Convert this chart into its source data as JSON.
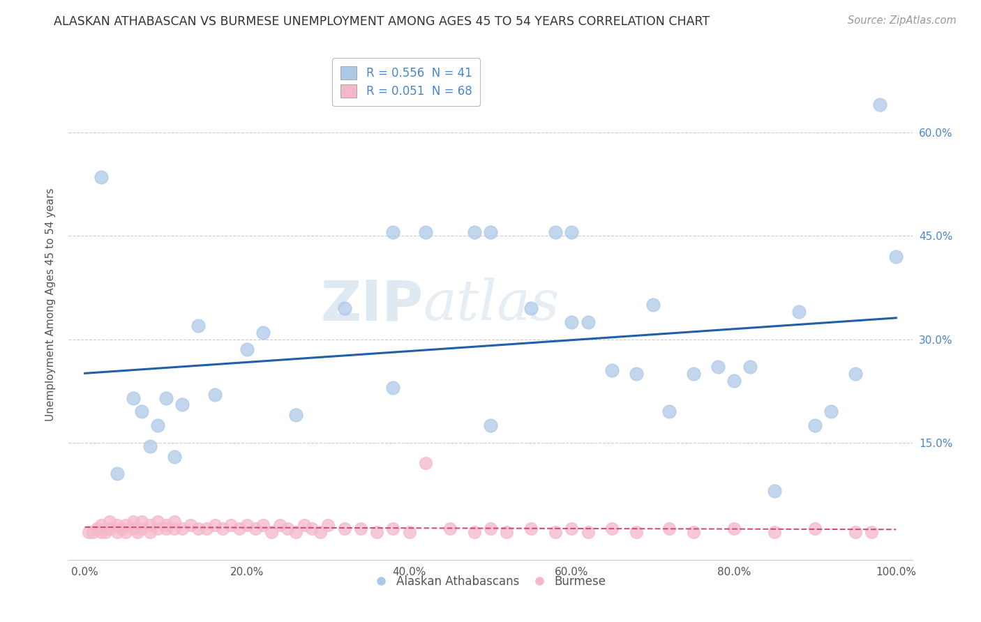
{
  "title": "ALASKAN ATHABASCAN VS BURMESE UNEMPLOYMENT AMONG AGES 45 TO 54 YEARS CORRELATION CHART",
  "source": "Source: ZipAtlas.com",
  "ylabel": "Unemployment Among Ages 45 to 54 years",
  "legend_label1": "R = 0.556  N = 41",
  "legend_label2": "R = 0.051  N = 68",
  "legend_footer1": "Alaskan Athabascans",
  "legend_footer2": "Burmese",
  "xlim": [
    -0.02,
    1.02
  ],
  "ylim": [
    -0.02,
    0.72
  ],
  "xticks": [
    0,
    0.2,
    0.4,
    0.6,
    0.8,
    1.0
  ],
  "xticklabels": [
    "0.0%",
    "20.0%",
    "40.0%",
    "60.0%",
    "80.0%",
    "100.0%"
  ],
  "yticks": [
    0.15,
    0.3,
    0.45,
    0.6
  ],
  "yticklabels": [
    "15.0%",
    "30.0%",
    "45.0%",
    "60.0%"
  ],
  "blue_color": "#aec9e8",
  "pink_color": "#f5b8cb",
  "line_blue": "#2060a8",
  "line_pink": "#d05070",
  "athabascan_x": [
    0.02,
    0.04,
    0.06,
    0.07,
    0.08,
    0.09,
    0.1,
    0.11,
    0.12,
    0.14,
    0.16,
    0.2,
    0.22,
    0.26,
    0.32,
    0.38,
    0.42,
    0.48,
    0.5,
    0.55,
    0.58,
    0.6,
    0.62,
    0.65,
    0.68,
    0.7,
    0.72,
    0.75,
    0.78,
    0.8,
    0.82,
    0.85,
    0.88,
    0.9,
    0.92,
    0.95,
    0.98,
    1.0,
    0.38,
    0.5,
    0.6
  ],
  "athabascan_y": [
    0.535,
    0.105,
    0.215,
    0.195,
    0.145,
    0.175,
    0.215,
    0.13,
    0.205,
    0.32,
    0.22,
    0.285,
    0.31,
    0.19,
    0.345,
    0.23,
    0.455,
    0.455,
    0.175,
    0.345,
    0.455,
    0.325,
    0.325,
    0.255,
    0.25,
    0.35,
    0.195,
    0.25,
    0.26,
    0.24,
    0.26,
    0.08,
    0.34,
    0.175,
    0.195,
    0.25,
    0.64,
    0.42,
    0.455,
    0.455,
    0.455
  ],
  "burmese_x": [
    0.005,
    0.01,
    0.015,
    0.02,
    0.02,
    0.025,
    0.03,
    0.03,
    0.04,
    0.04,
    0.045,
    0.05,
    0.05,
    0.06,
    0.06,
    0.065,
    0.07,
    0.07,
    0.08,
    0.08,
    0.09,
    0.09,
    0.1,
    0.1,
    0.11,
    0.11,
    0.12,
    0.13,
    0.14,
    0.15,
    0.16,
    0.17,
    0.18,
    0.19,
    0.2,
    0.21,
    0.22,
    0.23,
    0.24,
    0.25,
    0.26,
    0.27,
    0.28,
    0.29,
    0.3,
    0.32,
    0.34,
    0.36,
    0.38,
    0.4,
    0.42,
    0.45,
    0.48,
    0.5,
    0.52,
    0.55,
    0.58,
    0.6,
    0.62,
    0.65,
    0.68,
    0.72,
    0.75,
    0.8,
    0.85,
    0.9,
    0.95,
    0.97
  ],
  "burmese_y": [
    0.02,
    0.02,
    0.025,
    0.02,
    0.03,
    0.02,
    0.025,
    0.035,
    0.02,
    0.03,
    0.025,
    0.02,
    0.03,
    0.025,
    0.035,
    0.02,
    0.025,
    0.035,
    0.02,
    0.03,
    0.025,
    0.035,
    0.025,
    0.03,
    0.025,
    0.035,
    0.025,
    0.03,
    0.025,
    0.025,
    0.03,
    0.025,
    0.03,
    0.025,
    0.03,
    0.025,
    0.03,
    0.02,
    0.03,
    0.025,
    0.02,
    0.03,
    0.025,
    0.02,
    0.03,
    0.025,
    0.025,
    0.02,
    0.025,
    0.02,
    0.12,
    0.025,
    0.02,
    0.025,
    0.02,
    0.025,
    0.02,
    0.025,
    0.02,
    0.025,
    0.02,
    0.025,
    0.02,
    0.025,
    0.02,
    0.025,
    0.02,
    0.02
  ],
  "bg_color": "#ffffff",
  "grid_color": "#cccccc",
  "title_fontsize": 12.5,
  "axis_label_fontsize": 11,
  "tick_fontsize": 11,
  "legend_fontsize": 12,
  "source_fontsize": 10.5
}
